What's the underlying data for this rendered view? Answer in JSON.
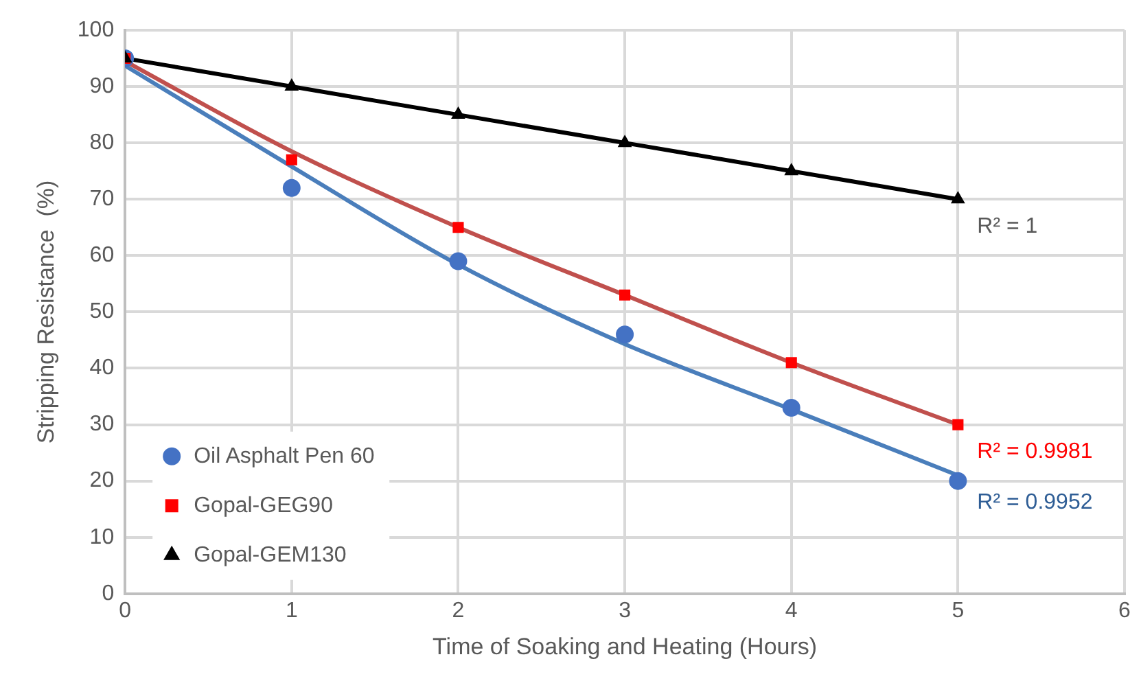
{
  "chart_data": {
    "type": "scatter",
    "xlabel": "Time of Soaking and Heating (Hours)",
    "ylabel": "Stripping Resistance  (%)",
    "xlim": [
      0,
      6
    ],
    "xticks": [
      0,
      1,
      2,
      3,
      4,
      5,
      6
    ],
    "ylim": [
      0,
      100
    ],
    "yticks": [
      0,
      10,
      20,
      30,
      40,
      50,
      60,
      70,
      80,
      90,
      100
    ],
    "grid": true,
    "legend": "bottom left",
    "series": [
      {
        "type": "line",
        "marker": "none",
        "color": "#4a7ebb",
        "x": [
          0,
          1,
          2,
          3,
          4,
          5
        ],
        "values": [
          93.7,
          75.8,
          58.4,
          44.3,
          32.7,
          21
        ]
      },
      {
        "type": "line",
        "marker": "none",
        "color": "#c0504d",
        "x": [
          0,
          1,
          2,
          3,
          4,
          5
        ],
        "values": [
          94.5,
          78.5,
          65,
          53,
          41,
          30
        ]
      },
      {
        "type": "line",
        "marker": "none",
        "color": "#000000",
        "x": [
          0,
          1,
          2,
          3,
          4,
          5
        ],
        "values": [
          95,
          90,
          85,
          80,
          75,
          70
        ]
      },
      {
        "marker": "circle",
        "name": "Oil Asphalt Pen 60",
        "color": "#4472c4",
        "x": [
          0,
          1,
          2,
          3,
          4,
          5
        ],
        "values": [
          95,
          72,
          59,
          46,
          33,
          20
        ]
      },
      {
        "marker": "square",
        "name": "Gopal-GEG90",
        "color": "#ff0000",
        "x": [
          0,
          1,
          2,
          3,
          4,
          5
        ],
        "values": [
          95,
          77,
          65,
          53,
          41,
          30
        ]
      },
      {
        "marker": "triangle",
        "name": "Gopal-GEM130",
        "color": "#000000",
        "x": [
          0,
          1,
          2,
          3,
          4,
          5
        ],
        "values": [
          95,
          90,
          85,
          80,
          75,
          70
        ]
      }
    ],
    "annotations": [
      "R² = 0.9952",
      "R² = 0.9981",
      "R² = 1"
    ]
  }
}
